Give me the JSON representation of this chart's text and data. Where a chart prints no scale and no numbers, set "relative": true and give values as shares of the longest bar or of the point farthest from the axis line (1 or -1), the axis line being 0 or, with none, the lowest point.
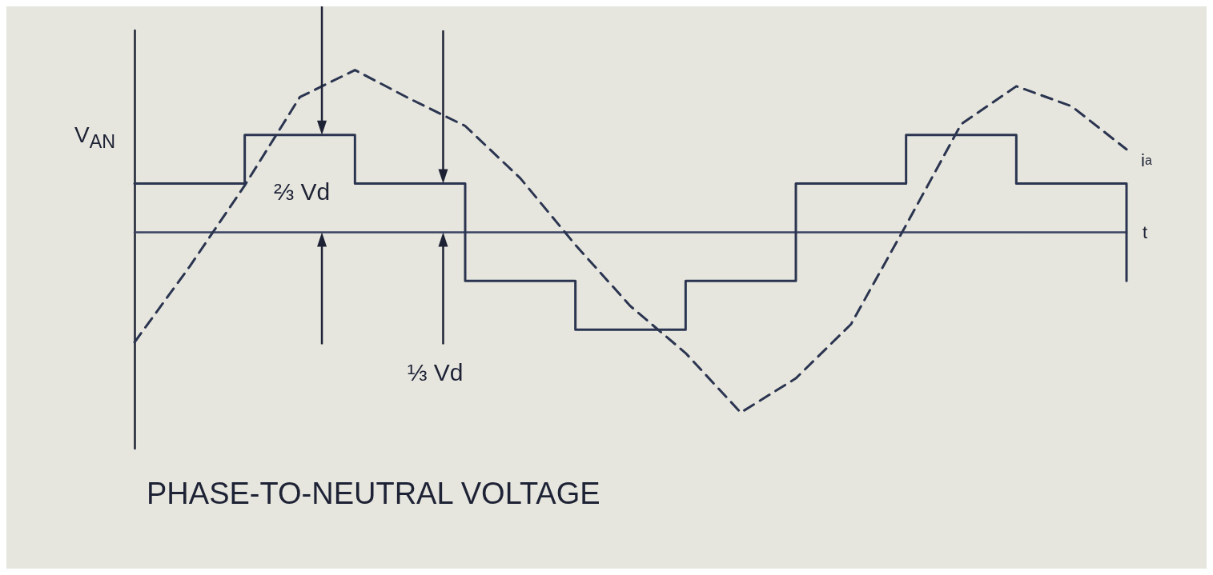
{
  "chart_data": {
    "type": "step",
    "title": "PHASE-TO-NEUTRAL VOLTAGE",
    "ylabel": "V$_{AN}$",
    "xlabel": "t",
    "relative": true,
    "grid": false,
    "legend": false,
    "marker": "none",
    "categories": [
      null,
      null,
      null,
      null,
      null,
      null,
      null,
      null,
      null,
      null,
      null,
      null,
      null,
      null,
      null,
      null,
      null,
      null,
      null
    ],
    "series": [
      {
        "color": "#2b3550",
        "line_style": "solid",
        "values": [
          0.27,
          0.27,
          0.54,
          0.54,
          0.27,
          0.27,
          -0.27,
          -0.27,
          -0.54,
          -0.54,
          -0.27,
          -0.27,
          0.27,
          0.27,
          0.54,
          0.54,
          0.27,
          0.27,
          -0.27
        ]
      },
      {
        "name": "i$_{a}$",
        "type": "line",
        "color": "#2b3550",
        "line_style": "dashed",
        "values": [
          -0.61,
          -0.19,
          0.26,
          0.75,
          0.9,
          0.74,
          0.59,
          0.3,
          -0.07,
          -0.41,
          -0.67,
          -1,
          -0.81,
          -0.51,
          0.04,
          0.6,
          0.81,
          0.7,
          0.46
        ]
      }
    ],
    "annotations": [
      "⅔ Vd",
      "⅓ Vd"
    ]
  }
}
